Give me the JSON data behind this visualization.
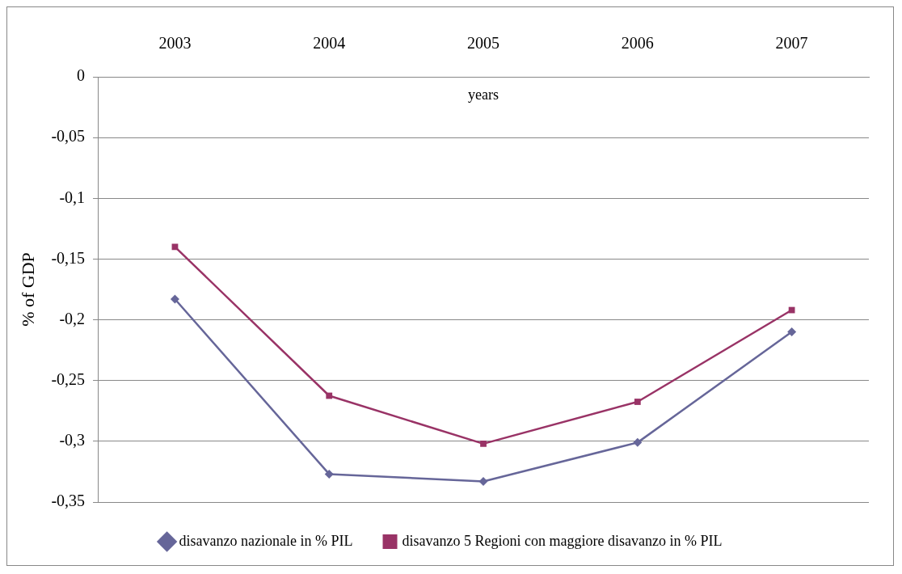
{
  "chart_data": {
    "type": "line",
    "xlabel": "years",
    "ylabel": "% of GDP",
    "categories": [
      "2003",
      "2004",
      "2005",
      "2006",
      "2007"
    ],
    "series": [
      {
        "name": "disavanzo nazionale in % PIL",
        "color": "#666699",
        "marker": "diamond",
        "values": [
          -0.183,
          -0.327,
          -0.333,
          -0.301,
          -0.21
        ]
      },
      {
        "name": "disavanzo 5 Regioni con maggiore disavanzo in % PIL",
        "color": "#993366",
        "marker": "square",
        "values": [
          -0.14,
          -0.2625,
          -0.302,
          -0.2675,
          -0.192
        ]
      }
    ],
    "ylim": [
      -0.35,
      0
    ],
    "yticks": [
      0,
      {
        "value": -0.05,
        "label": "-0,05"
      },
      {
        "value": -0.1,
        "label": "-0,1"
      },
      {
        "value": -0.15,
        "label": "-0,15"
      },
      {
        "value": -0.2,
        "label": "-0,2"
      },
      {
        "value": -0.25,
        "label": "-0,25"
      },
      {
        "value": -0.3,
        "label": "-0,3"
      },
      {
        "value": -0.35,
        "label": "-0,35"
      }
    ],
    "grid": "y",
    "legend": "bottom",
    "line_style": "solid"
  }
}
